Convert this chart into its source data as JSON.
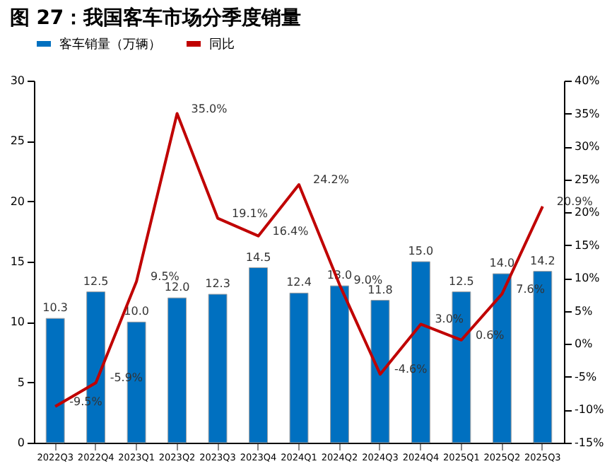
{
  "chart_data": {
    "type": "bar",
    "title": "图 27：我国客车市场分季度销量",
    "categories": [
      "2022Q3",
      "2022Q4",
      "2023Q1",
      "2023Q2",
      "2023Q3",
      "2023Q4",
      "2024Q1",
      "2024Q2",
      "2024Q3",
      "2024Q4",
      "2025Q1",
      "2025Q2",
      "2025Q3"
    ],
    "series": [
      {
        "name": "客车销量（万辆）",
        "color": "#0070c0",
        "values": [
          10.3,
          12.5,
          10.0,
          12.0,
          12.3,
          14.5,
          12.4,
          13.0,
          11.8,
          15.0,
          12.5,
          14.0,
          14.2
        ],
        "value_labels": [
          "10.3",
          "12.5",
          "10.0",
          "12.0",
          "12.3",
          "14.5",
          "12.4",
          "13.0",
          "11.8",
          "15.0",
          "12.5",
          "14.0",
          "14.2"
        ]
      },
      {
        "name": "同比",
        "type": "line",
        "axis": "y2",
        "color": "#c00000",
        "values": [
          -9.5,
          -5.9,
          9.5,
          35.0,
          19.1,
          16.4,
          24.2,
          9.0,
          -4.6,
          3.0,
          0.6,
          7.6,
          20.9
        ],
        "value_labels": [
          "-9.5%",
          "-5.9%",
          "9.5%",
          "35.0%",
          "19.1%",
          "16.4%",
          "24.2%",
          "9.0%",
          "-4.6%",
          "3.0%",
          "0.6%",
          "7.6%",
          "20.9%"
        ]
      }
    ],
    "ylim": [
      0,
      30
    ],
    "yticks": [
      0,
      5,
      10,
      15,
      20,
      25,
      30
    ],
    "y2lim": [
      -15,
      40
    ],
    "y2ticks": [
      {
        "value": -15,
        "label": "-15%"
      },
      {
        "value": -10,
        "label": "-10%"
      },
      {
        "value": -5,
        "label": "-5%"
      },
      {
        "value": 0,
        "label": "0%"
      },
      {
        "value": 5,
        "label": "5%"
      },
      {
        "value": 10,
        "label": "10%"
      },
      {
        "value": 15,
        "label": "15%"
      },
      {
        "value": 20,
        "label": "20%"
      },
      {
        "value": 25,
        "label": "25%"
      },
      {
        "value": 30,
        "label": "30%"
      },
      {
        "value": 35,
        "label": "35%"
      },
      {
        "value": 40,
        "label": "40%"
      }
    ],
    "grid": false,
    "legend": "top",
    "marker": "none",
    "line_style": "solid"
  }
}
